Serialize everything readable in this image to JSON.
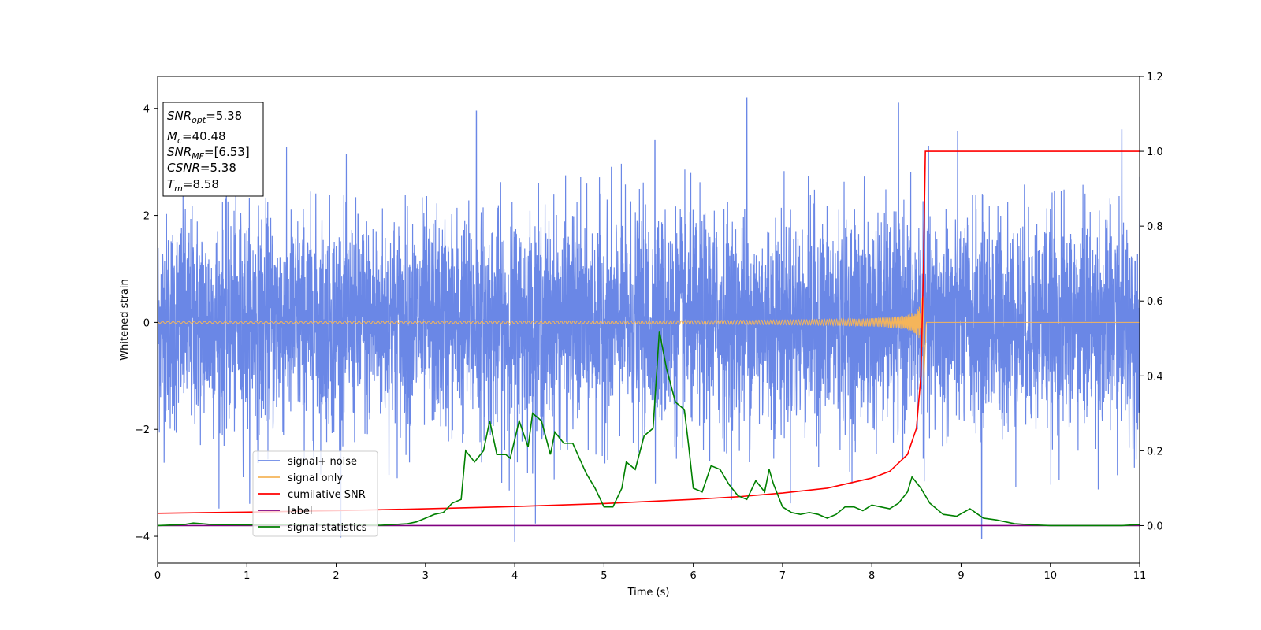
{
  "chart_data": {
    "type": "line",
    "title": "",
    "xlabel": "Time (s)",
    "ylabel": "Whitened strain",
    "xlim": [
      0,
      11
    ],
    "ylim_left": [
      -4.5,
      4.6
    ],
    "ylim_right": [
      -0.1,
      1.2
    ],
    "xticks": [
      "0",
      "1",
      "2",
      "3",
      "4",
      "5",
      "6",
      "7",
      "8",
      "9",
      "10",
      "11"
    ],
    "yticks_left": [
      "−4",
      "−2",
      "0",
      "2",
      "4"
    ],
    "yticks_right": [
      "0.0",
      "0.2",
      "0.4",
      "0.6",
      "0.8",
      "1.0",
      "1.2"
    ],
    "grid": false,
    "legend_position": "lower-left",
    "info_box": {
      "snr_opt": {
        "symbol": "SNR",
        "sub": "opt",
        "value": "=5.38"
      },
      "mc": {
        "symbol": "M",
        "sub": "c",
        "value": "=40.48"
      },
      "snr_mf": {
        "symbol": "SNR",
        "sub": "MF",
        "value": "=[6.53]"
      },
      "csnr": {
        "symbol": "CSNR",
        "sub": "",
        "value": "=5.38"
      },
      "tm": {
        "symbol": "T",
        "sub": "m",
        "value": "=8.58"
      }
    },
    "series": [
      {
        "name": "signal+ noise",
        "axis": "left",
        "color": "#6a87e6",
        "description_values": "white noise, std≈1.0, spikes up to ~4.2",
        "noise_std": 1.0,
        "range": [
          -4.1,
          4.2
        ],
        "notable_peaks": [
          [
            3.57,
            3.95
          ],
          [
            5.57,
            3.4
          ],
          [
            6.6,
            4.2
          ],
          [
            8.3,
            4.1
          ],
          [
            10.8,
            3.6
          ]
        ],
        "notable_troughs": [
          [
            4.0,
            -4.1
          ],
          [
            9.23,
            -4.05
          ]
        ]
      },
      {
        "name": "signal only",
        "axis": "left",
        "color": "#f5b55a",
        "chirp_end": 8.58,
        "chirp_peak_amplitude": 0.5,
        "final_dip": -1.3
      },
      {
        "name": "cumilative SNR",
        "axis": "right",
        "color": "#ff0000",
        "x": [
          0,
          1,
          2,
          3,
          4,
          5,
          6,
          6.5,
          7,
          7.5,
          8,
          8.2,
          8.4,
          8.5,
          8.55,
          8.58,
          8.6,
          11
        ],
        "y": [
          0.033,
          0.036,
          0.04,
          0.045,
          0.051,
          0.059,
          0.07,
          0.077,
          0.087,
          0.1,
          0.127,
          0.145,
          0.19,
          0.26,
          0.4,
          0.7,
          1.0,
          1.0
        ]
      },
      {
        "name": "label",
        "axis": "right",
        "color": "#800080",
        "x": [
          0,
          11
        ],
        "y": [
          0.0,
          0.0
        ]
      },
      {
        "name": "signal statistics",
        "axis": "right",
        "color": "#008000",
        "x": [
          0,
          0.3,
          0.4,
          0.6,
          1.0,
          1.5,
          2.0,
          2.5,
          2.8,
          2.9,
          3.0,
          3.1,
          3.2,
          3.3,
          3.4,
          3.45,
          3.55,
          3.65,
          3.72,
          3.8,
          3.9,
          3.95,
          4.05,
          4.15,
          4.2,
          4.3,
          4.4,
          4.45,
          4.55,
          4.65,
          4.8,
          4.9,
          5.0,
          5.1,
          5.2,
          5.25,
          5.35,
          5.45,
          5.55,
          5.62,
          5.7,
          5.8,
          5.9,
          5.95,
          6.0,
          6.1,
          6.2,
          6.3,
          6.4,
          6.5,
          6.6,
          6.7,
          6.8,
          6.85,
          6.9,
          7.0,
          7.1,
          7.2,
          7.3,
          7.4,
          7.5,
          7.6,
          7.7,
          7.8,
          7.9,
          8.0,
          8.1,
          8.2,
          8.3,
          8.4,
          8.45,
          8.55,
          8.65,
          8.8,
          8.95,
          9.1,
          9.25,
          9.4,
          9.6,
          9.8,
          10.0,
          10.5,
          10.8,
          11.0
        ],
        "y": [
          0.0,
          0.003,
          0.007,
          0.003,
          0.002,
          0.002,
          0.002,
          0.001,
          0.005,
          0.01,
          0.02,
          0.03,
          0.035,
          0.06,
          0.07,
          0.2,
          0.17,
          0.2,
          0.28,
          0.19,
          0.19,
          0.18,
          0.28,
          0.21,
          0.3,
          0.28,
          0.19,
          0.25,
          0.22,
          0.22,
          0.14,
          0.1,
          0.05,
          0.05,
          0.1,
          0.17,
          0.15,
          0.24,
          0.26,
          0.52,
          0.42,
          0.33,
          0.31,
          0.21,
          0.1,
          0.09,
          0.16,
          0.15,
          0.11,
          0.08,
          0.07,
          0.12,
          0.09,
          0.15,
          0.11,
          0.05,
          0.035,
          0.03,
          0.035,
          0.03,
          0.02,
          0.03,
          0.05,
          0.05,
          0.04,
          0.055,
          0.05,
          0.045,
          0.06,
          0.09,
          0.13,
          0.1,
          0.06,
          0.03,
          0.025,
          0.045,
          0.02,
          0.015,
          0.005,
          0.002,
          0.0,
          0.0,
          0.0,
          0.003
        ]
      }
    ]
  }
}
